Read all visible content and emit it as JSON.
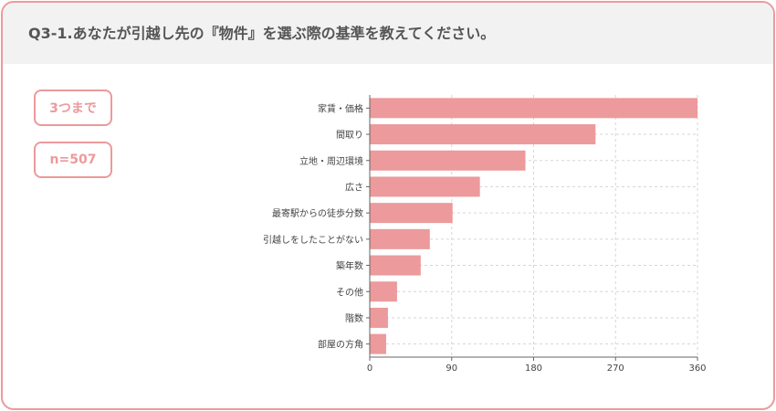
{
  "header": {
    "title": "Q3-1.あなたが引越し先の『物件』を選ぶ際の基準を教えてください。"
  },
  "badges": {
    "limit": "3つまで",
    "sample": "n=507"
  },
  "colors": {
    "accent": "#ec9a9b",
    "bar": "#ec9a9b",
    "header_bg": "#f2f2f2",
    "title_text": "#555555"
  },
  "chart_data": {
    "type": "bar",
    "orientation": "horizontal",
    "categories": [
      "家賃・価格",
      "間取り",
      "立地・周辺環境",
      "広さ",
      "最寄駅からの徒歩分数",
      "引越しをしたことがない",
      "築年数",
      "その他",
      "階数",
      "部屋の方角"
    ],
    "values": [
      360,
      248,
      171,
      121,
      91,
      66,
      56,
      30,
      20,
      18
    ],
    "xticks": [
      0,
      90,
      180,
      270,
      360
    ],
    "xlim": [
      0,
      360
    ],
    "grid": true
  }
}
